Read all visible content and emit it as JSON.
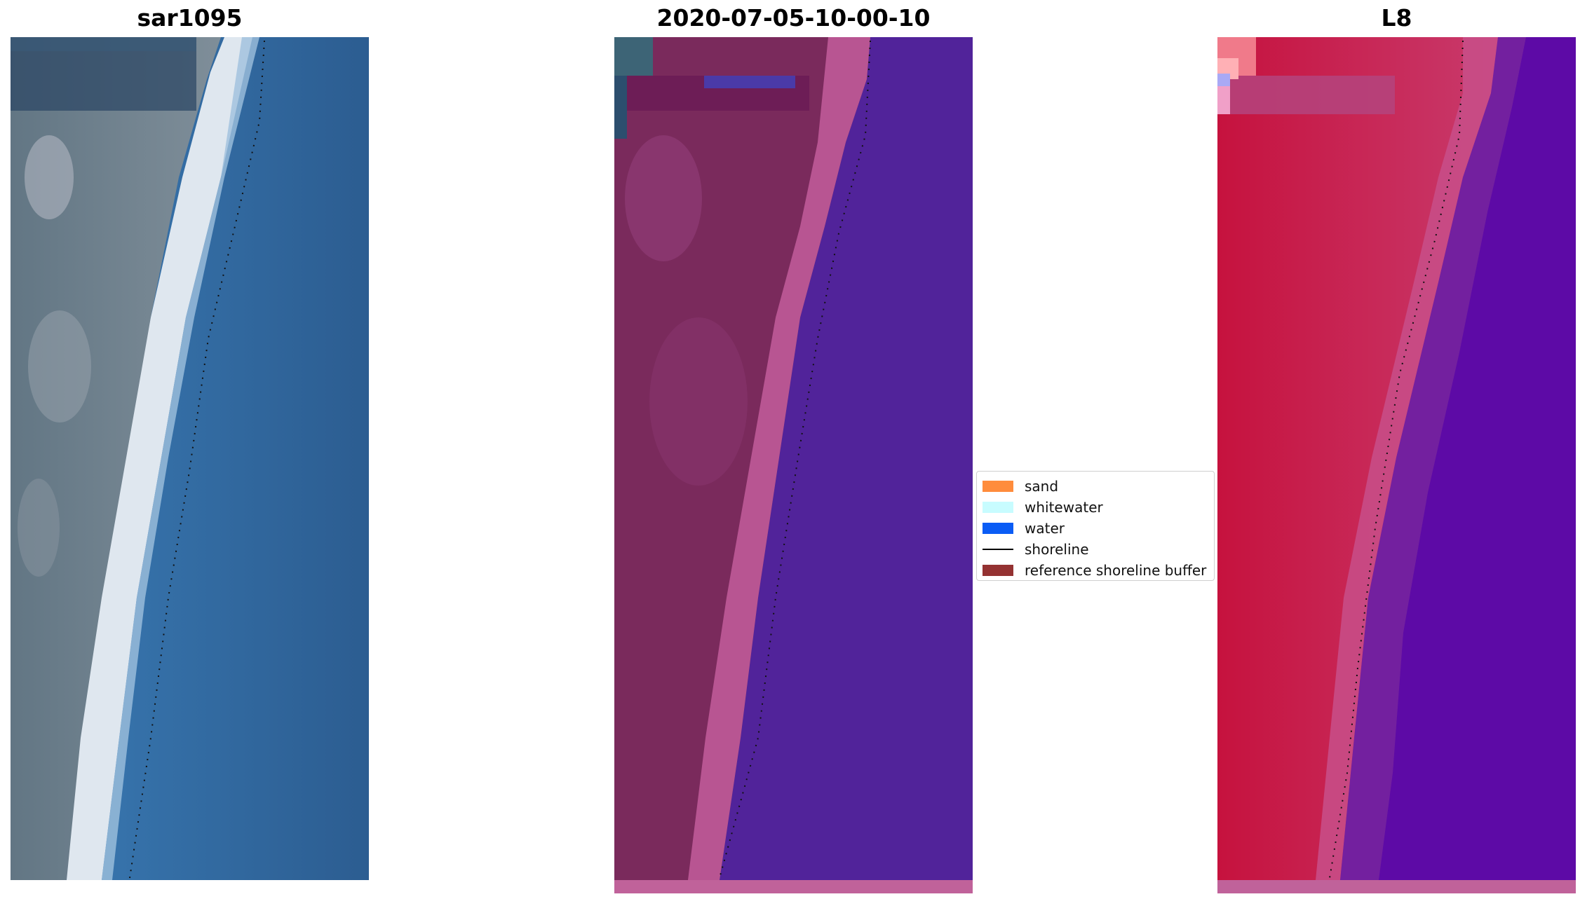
{
  "panels": [
    {
      "title": "sar1095"
    },
    {
      "title": "2020-07-05-10-00-10"
    },
    {
      "title": "L8"
    }
  ],
  "legend": {
    "items": [
      {
        "label": "sand",
        "color": "#ff8c3c"
      },
      {
        "label": "whitewater",
        "color": "#c8fcff"
      },
      {
        "label": "water",
        "color": "#0a5cf5"
      },
      {
        "label": "shoreline",
        "color": "#000000"
      },
      {
        "label": "reference shoreline buffer",
        "color": "#943232"
      }
    ]
  },
  "colors": {
    "rgb_land": "#5b7180",
    "rgb_sea": "#2d669d",
    "rgb_beach": "#dde6ef",
    "class_land": "#7a2a5c",
    "class_sand": "#b85592",
    "class_water": "#51239a",
    "mndwi_land": "#c8234f",
    "mndwi_sea": "#5d0aa6"
  }
}
